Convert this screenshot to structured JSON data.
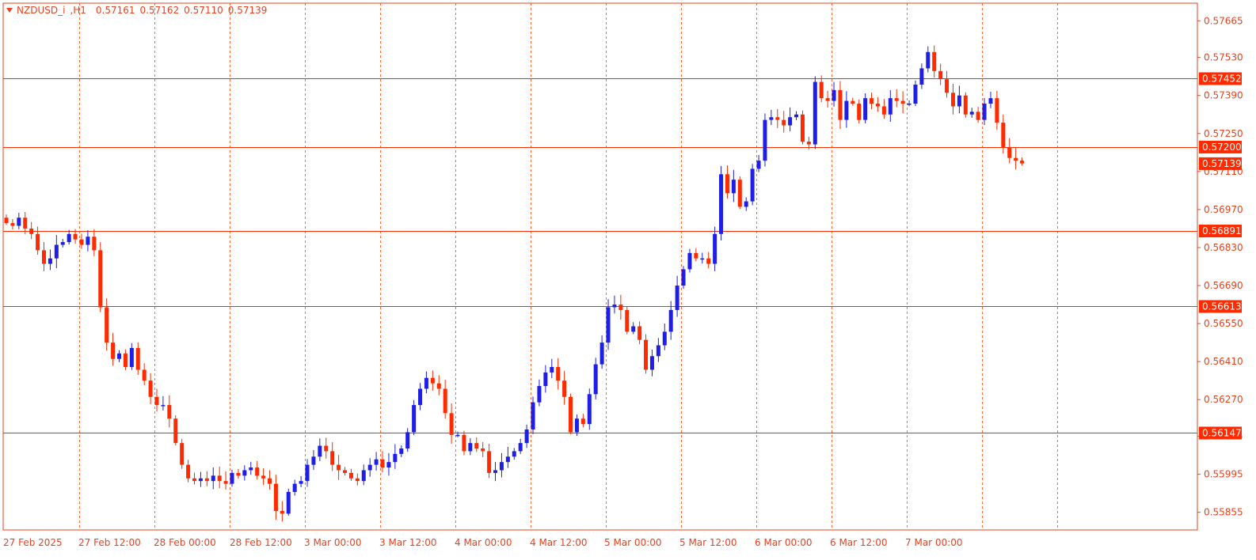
{
  "chart_data": {
    "type": "candlestick",
    "symbol": "NZDUSD_i",
    "timeframe": "H1",
    "ohlc_header": {
      "open": "0.57161",
      "high": "0.57162",
      "low": "0.57110",
      "close": "0.57139"
    },
    "ylim": [
      0.5579,
      0.5773
    ],
    "y_ticks": [
      "0.57665",
      "0.57530",
      "0.57390",
      "0.57250",
      "0.57110",
      "0.56970",
      "0.56830",
      "0.56690",
      "0.56550",
      "0.56410",
      "0.56270",
      "0.56135",
      "0.55995",
      "0.55855"
    ],
    "x_labels": [
      "27 Feb 2025",
      "27 Feb 12:00",
      "28 Feb 00:00",
      "28 Feb 12:00",
      "3 Mar 00:00",
      "3 Mar 12:00",
      "4 Mar 00:00",
      "4 Mar 12:00",
      "5 Mar 00:00",
      "5 Mar 12:00",
      "6 Mar 00:00",
      "6 Mar 12:00",
      "7 Mar 00:00"
    ],
    "levels": [
      {
        "label": "0.57452",
        "value": 0.57452
      },
      {
        "label": "0.57200",
        "value": 0.572
      },
      {
        "label": "0.56891",
        "value": 0.56891
      },
      {
        "label": "0.56613",
        "value": 0.56613
      },
      {
        "label": "0.56147",
        "value": 0.56147
      }
    ],
    "current_price": {
      "label": "0.57139",
      "value": 0.57139
    },
    "colors": {
      "bull": "#1e1ee6",
      "bear": "#ff2a00",
      "grid": "#ff6a3a",
      "axis": "#e8421f",
      "level": "#ff2a00"
    },
    "series_close": [
      0.5692,
      0.5691,
      0.5694,
      0.569,
      0.5688,
      0.5682,
      0.5677,
      0.5679,
      0.5684,
      0.5685,
      0.5688,
      0.5686,
      0.5684,
      0.5687,
      0.5682,
      0.5661,
      0.5648,
      0.5642,
      0.5644,
      0.5639,
      0.5646,
      0.5638,
      0.5634,
      0.5628,
      0.5625,
      0.5625,
      0.562,
      0.5611,
      0.5603,
      0.5598,
      0.5597,
      0.5598,
      0.5597,
      0.5599,
      0.5597,
      0.5596,
      0.56,
      0.5599,
      0.5601,
      0.5602,
      0.5599,
      0.5598,
      0.5596,
      0.5586,
      0.5585,
      0.5593,
      0.5596,
      0.5597,
      0.5603,
      0.5606,
      0.561,
      0.5608,
      0.5603,
      0.5601,
      0.56,
      0.5598,
      0.5597,
      0.5601,
      0.5603,
      0.5605,
      0.5602,
      0.5604,
      0.5607,
      0.5609,
      0.5615,
      0.5625,
      0.5631,
      0.5635,
      0.5633,
      0.5631,
      0.5622,
      0.5614,
      0.5614,
      0.5608,
      0.5611,
      0.5609,
      0.5608,
      0.56,
      0.5601,
      0.5604,
      0.5606,
      0.5608,
      0.5611,
      0.5616,
      0.5626,
      0.5632,
      0.5637,
      0.5639,
      0.5634,
      0.5628,
      0.5615,
      0.562,
      0.5618,
      0.5629,
      0.564,
      0.5648,
      0.5661,
      0.5662,
      0.566,
      0.5652,
      0.5654,
      0.5649,
      0.5638,
      0.5643,
      0.5647,
      0.5652,
      0.566,
      0.5669,
      0.5675,
      0.5681,
      0.5679,
      0.5679,
      0.5677,
      0.5688,
      0.571,
      0.5703,
      0.5708,
      0.5698,
      0.57,
      0.5712,
      0.5715,
      0.573,
      0.5731,
      0.573,
      0.5728,
      0.5731,
      0.5732,
      0.5722,
      0.5721,
      0.5744,
      0.5738,
      0.5737,
      0.5741,
      0.573,
      0.5737,
      0.5736,
      0.573,
      0.5738,
      0.5736,
      0.5735,
      0.5732,
      0.5738,
      0.5737,
      0.5736,
      0.5736,
      0.5743,
      0.5749,
      0.5755,
      0.5748,
      0.5745,
      0.574,
      0.5735,
      0.5739,
      0.5732,
      0.5733,
      0.573,
      0.5736,
      0.5738,
      0.5729,
      0.572,
      0.5716,
      0.5715,
      0.5714
    ]
  }
}
